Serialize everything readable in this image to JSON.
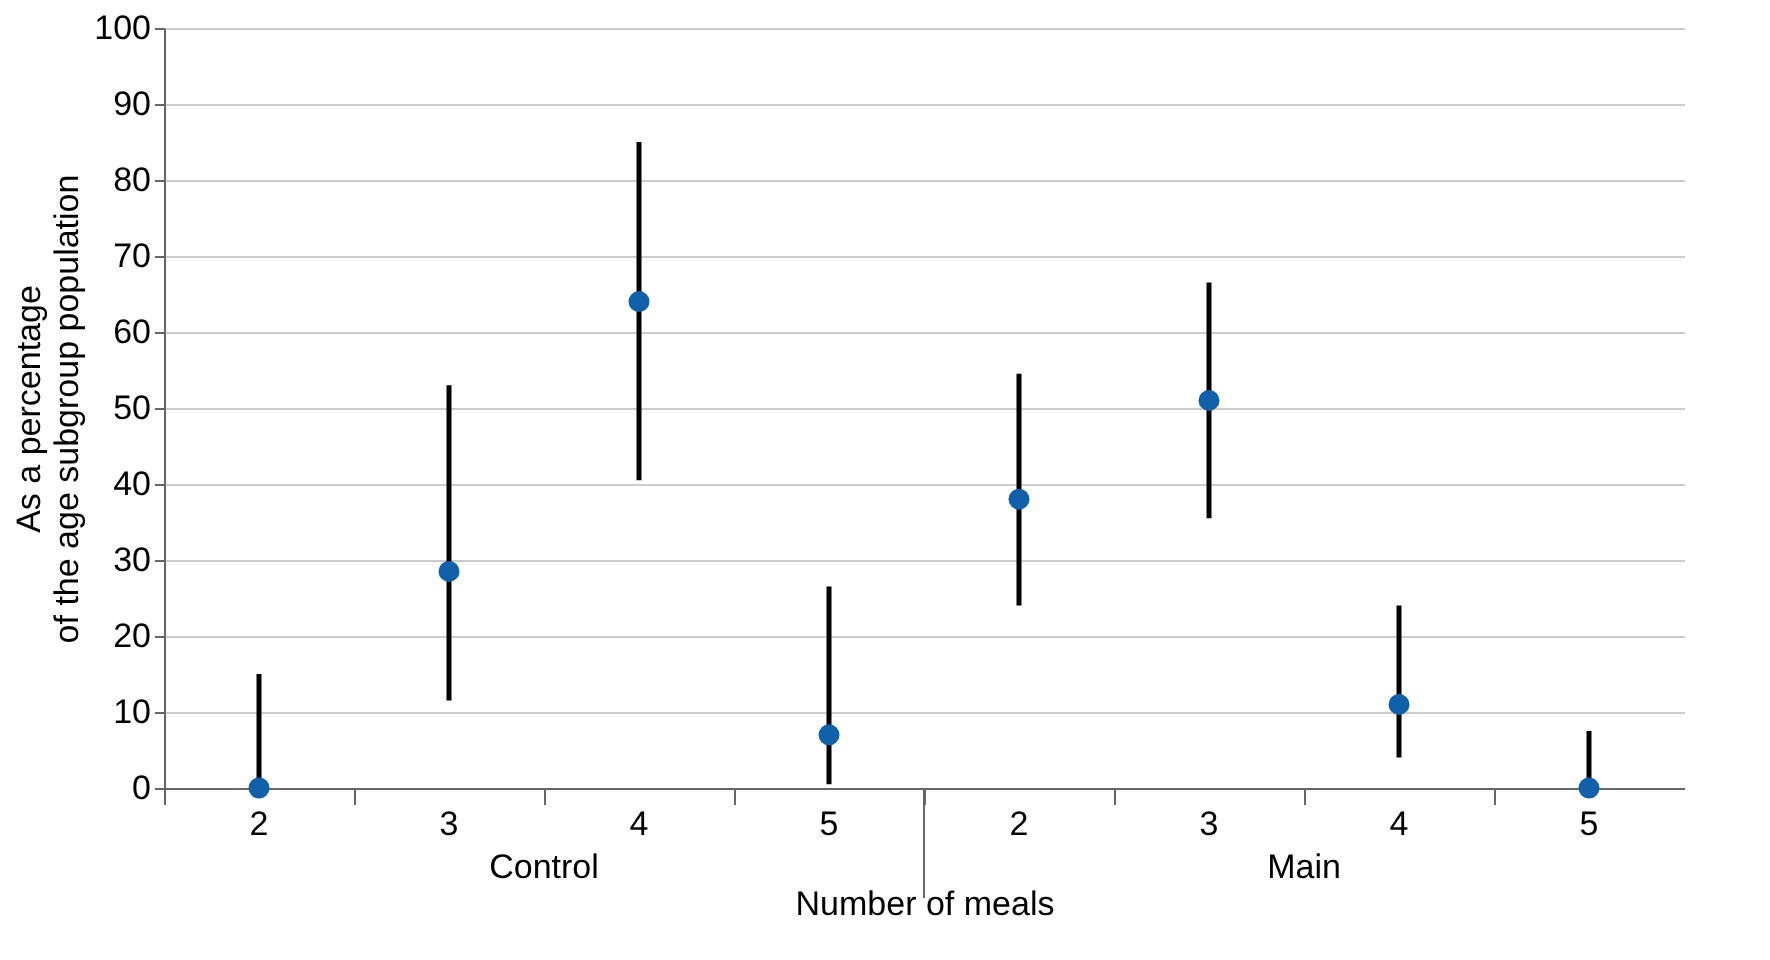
{
  "chart_data": {
    "type": "scatter",
    "xlabel": "Number of meals",
    "ylabel": "As a percentage\nof the age subgroup population",
    "categories": [
      "2",
      "3",
      "4",
      "5",
      "2",
      "3",
      "4",
      "5"
    ],
    "values": [
      0,
      28.5,
      64,
      7,
      38,
      51,
      11,
      0
    ],
    "errors": [
      [
        0,
        15
      ],
      [
        11.5,
        53
      ],
      [
        40.5,
        85
      ],
      [
        0.5,
        26.5
      ],
      [
        24,
        54.5
      ],
      [
        35.5,
        66.5
      ],
      [
        4,
        24
      ],
      [
        0,
        7.5
      ]
    ],
    "color": "#1060aa",
    "marker": "circle",
    "grid": "y",
    "legend": false,
    "ylim": [
      0,
      100
    ],
    "yticks": [
      0,
      10,
      20,
      30,
      40,
      50,
      60,
      70,
      80,
      90,
      100
    ],
    "annotations": [
      "Control",
      "Main"
    ]
  }
}
